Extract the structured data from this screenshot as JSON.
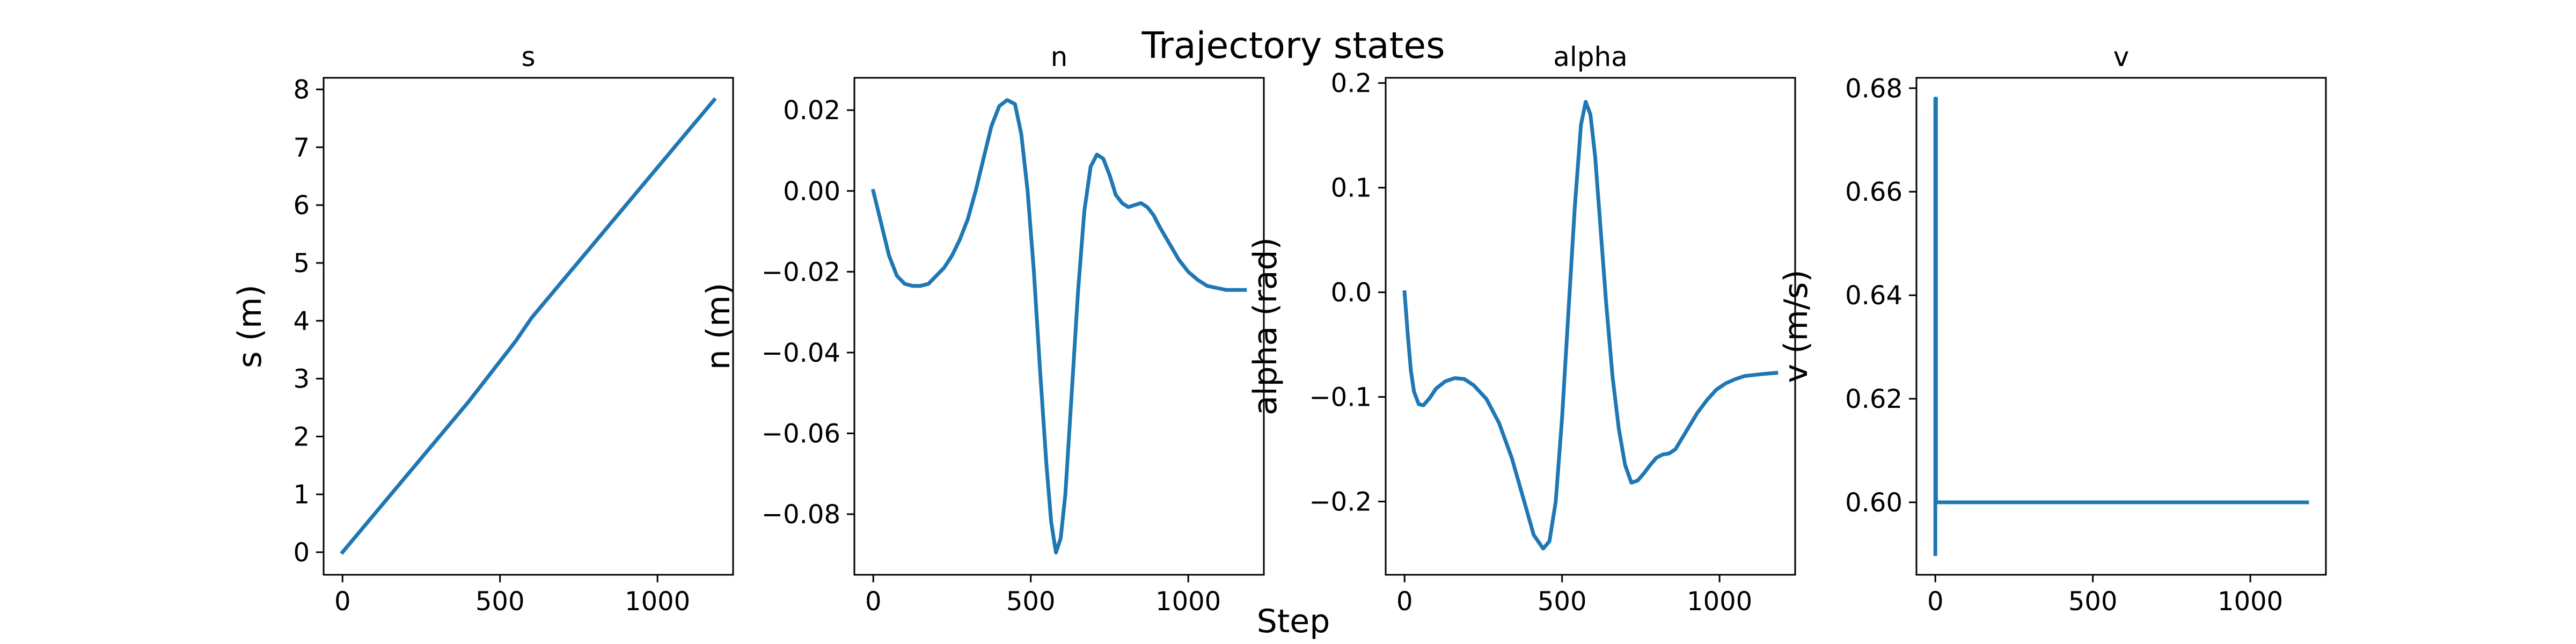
{
  "figure": {
    "suptitle": "Trajectory states",
    "xlabel": "Step"
  },
  "chart_data": [
    {
      "type": "line",
      "title": "s",
      "xlabel": "",
      "ylabel": "s (m)",
      "xlim": [
        -60,
        1240
      ],
      "ylim": [
        -0.39,
        8.2
      ],
      "xticks": [
        0,
        500,
        1000
      ],
      "yticks": [
        0,
        1,
        2,
        3,
        4,
        5,
        6,
        7,
        8
      ],
      "ytick_labels": [
        "0",
        "1",
        "2",
        "3",
        "4",
        "5",
        "6",
        "7",
        "8"
      ],
      "color": "#1f77b4",
      "series": [
        {
          "x": [
            0,
            100,
            200,
            300,
            400,
            500,
            550,
            600,
            700,
            800,
            900,
            1000,
            1100,
            1180
          ],
          "y": [
            0,
            0.65,
            1.3,
            1.95,
            2.6,
            3.3,
            3.65,
            4.05,
            4.7,
            5.35,
            6.0,
            6.65,
            7.3,
            7.82
          ]
        }
      ]
    },
    {
      "type": "line",
      "title": "n",
      "xlabel": "",
      "ylabel": "n (m)",
      "xlim": [
        -60,
        1240
      ],
      "ylim": [
        -0.095,
        0.028
      ],
      "xticks": [
        0,
        500,
        1000
      ],
      "yticks": [
        0.02,
        0.0,
        -0.02,
        -0.04,
        -0.06,
        -0.08
      ],
      "ytick_labels": [
        "0.02",
        "0.00",
        "−0.02",
        "−0.04",
        "−0.06",
        "−0.08"
      ],
      "color": "#1f77b4",
      "series": [
        {
          "x": [
            0,
            25,
            50,
            75,
            100,
            125,
            150,
            175,
            200,
            225,
            250,
            275,
            300,
            325,
            350,
            375,
            400,
            425,
            450,
            470,
            490,
            510,
            530,
            550,
            565,
            580,
            595,
            610,
            630,
            650,
            670,
            690,
            710,
            730,
            750,
            770,
            790,
            810,
            830,
            850,
            870,
            890,
            910,
            940,
            970,
            1000,
            1030,
            1060,
            1090,
            1120,
            1150,
            1180
          ],
          "y": [
            0.0,
            -0.008,
            -0.016,
            -0.021,
            -0.023,
            -0.0235,
            -0.0235,
            -0.023,
            -0.021,
            -0.019,
            -0.016,
            -0.012,
            -0.007,
            0.0,
            0.008,
            0.016,
            0.021,
            0.0225,
            0.0215,
            0.014,
            0.0,
            -0.02,
            -0.045,
            -0.068,
            -0.082,
            -0.0895,
            -0.086,
            -0.075,
            -0.05,
            -0.025,
            -0.005,
            0.006,
            0.009,
            0.008,
            0.004,
            -0.001,
            -0.003,
            -0.004,
            -0.0035,
            -0.003,
            -0.004,
            -0.006,
            -0.009,
            -0.013,
            -0.017,
            -0.02,
            -0.022,
            -0.0235,
            -0.024,
            -0.0245,
            -0.0245,
            -0.0245
          ]
        }
      ]
    },
    {
      "type": "line",
      "title": "alpha",
      "xlabel": "",
      "ylabel": "alpha (rad)",
      "xlim": [
        -60,
        1240
      ],
      "ylim": [
        -0.27,
        0.205
      ],
      "xticks": [
        0,
        500,
        1000
      ],
      "yticks": [
        0.2,
        0.1,
        0.0,
        -0.1,
        -0.2
      ],
      "ytick_labels": [
        "0.2",
        "0.1",
        "0.0",
        "−0.1",
        "−0.2"
      ],
      "color": "#1f77b4",
      "series": [
        {
          "x": [
            0,
            10,
            20,
            30,
            45,
            60,
            80,
            100,
            130,
            160,
            190,
            220,
            260,
            300,
            340,
            380,
            410,
            440,
            460,
            480,
            500,
            520,
            540,
            560,
            575,
            590,
            605,
            620,
            640,
            660,
            680,
            700,
            720,
            740,
            760,
            780,
            800,
            820,
            840,
            860,
            880,
            900,
            930,
            960,
            990,
            1020,
            1050,
            1080,
            1110,
            1140,
            1180
          ],
          "y": [
            0.0,
            -0.04,
            -0.075,
            -0.095,
            -0.107,
            -0.108,
            -0.101,
            -0.092,
            -0.085,
            -0.082,
            -0.083,
            -0.089,
            -0.102,
            -0.125,
            -0.158,
            -0.2,
            -0.232,
            -0.245,
            -0.238,
            -0.2,
            -0.12,
            -0.02,
            0.08,
            0.16,
            0.182,
            0.17,
            0.13,
            0.07,
            -0.01,
            -0.08,
            -0.13,
            -0.165,
            -0.182,
            -0.18,
            -0.173,
            -0.165,
            -0.158,
            -0.155,
            -0.154,
            -0.15,
            -0.14,
            -0.13,
            -0.115,
            -0.103,
            -0.093,
            -0.087,
            -0.083,
            -0.08,
            -0.079,
            -0.078,
            -0.077
          ]
        }
      ]
    },
    {
      "type": "line",
      "title": "v",
      "xlabel": "",
      "ylabel": "v (m/s)",
      "xlim": [
        -60,
        1240
      ],
      "ylim": [
        0.586,
        0.682
      ],
      "xticks": [
        0,
        500,
        1000
      ],
      "yticks": [
        0.6,
        0.62,
        0.64,
        0.66,
        0.68
      ],
      "ytick_labels": [
        "0.60",
        "0.62",
        "0.64",
        "0.66",
        "0.68"
      ],
      "color": "#1f77b4",
      "series": [
        {
          "x": [
            0,
            0,
            2,
            2,
            1180
          ],
          "y": [
            0.59,
            0.678,
            0.678,
            0.6,
            0.6
          ]
        }
      ]
    }
  ]
}
